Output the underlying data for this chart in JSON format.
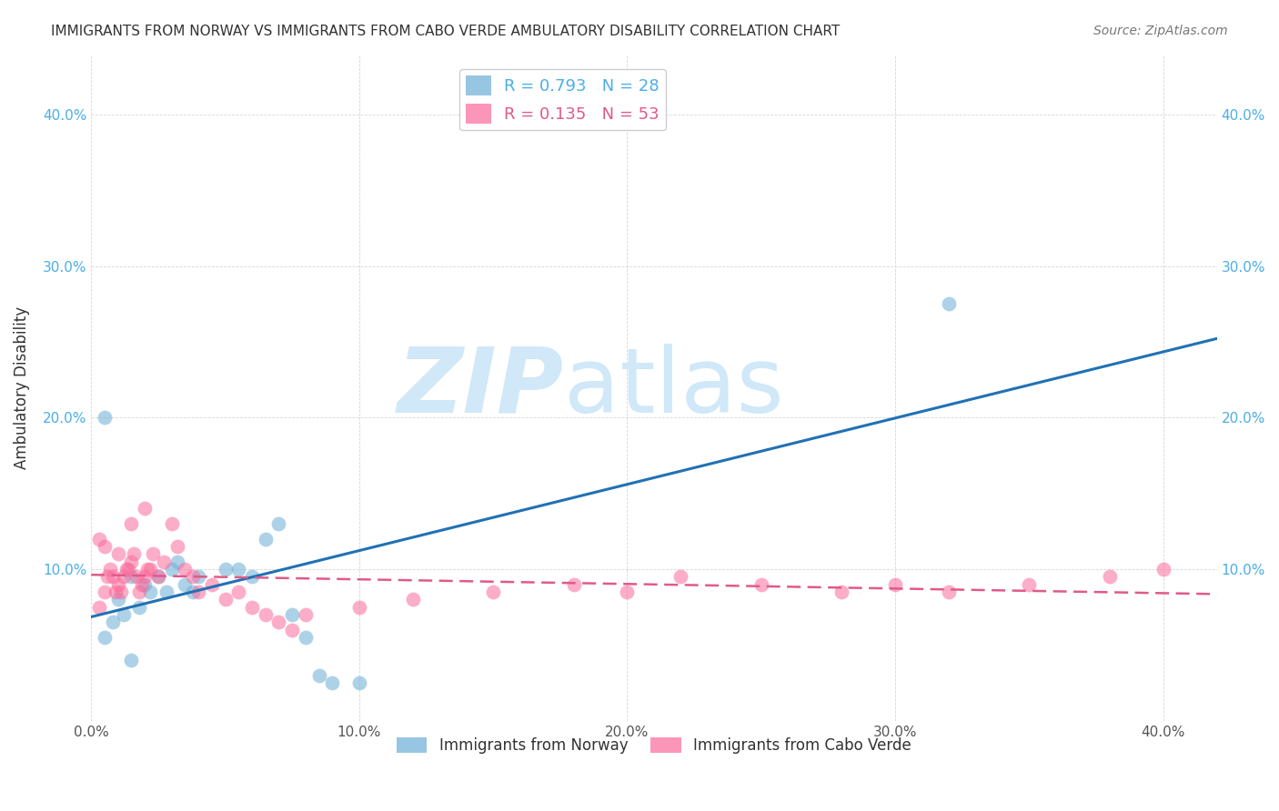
{
  "title": "IMMIGRANTS FROM NORWAY VS IMMIGRANTS FROM CABO VERDE AMBULATORY DISABILITY CORRELATION CHART",
  "source": "Source: ZipAtlas.com",
  "ylabel": "Ambulatory Disability",
  "xlim": [
    0.0,
    0.42
  ],
  "ylim": [
    0.0,
    0.44
  ],
  "xticks": [
    0.0,
    0.1,
    0.2,
    0.3,
    0.4
  ],
  "yticks": [
    0.0,
    0.1,
    0.2,
    0.3,
    0.4
  ],
  "xticklabels": [
    "0.0%",
    "10.0%",
    "20.0%",
    "30.0%",
    "40.0%"
  ],
  "yticklabels": [
    "",
    "10.0%",
    "20.0%",
    "30.0%",
    "40.0%"
  ],
  "norway_color": "#6baed6",
  "cabo_verde_color": "#fb6a9a",
  "norway_R": 0.793,
  "norway_N": 28,
  "cabo_verde_R": 0.135,
  "cabo_verde_N": 53,
  "norway_line_color": "#2171b5",
  "cabo_verde_line_color": "#e05a8a",
  "watermark_zip": "ZIP",
  "watermark_atlas": "atlas",
  "watermark_color": "#d0e8f8",
  "norway_legend_color": "#4baee8",
  "cabo_legend_color": "#e05a8a",
  "norway_scatter_x": [
    0.005,
    0.008,
    0.01,
    0.012,
    0.015,
    0.018,
    0.02,
    0.022,
    0.025,
    0.028,
    0.03,
    0.032,
    0.035,
    0.038,
    0.04,
    0.05,
    0.055,
    0.06,
    0.065,
    0.07,
    0.075,
    0.08,
    0.085,
    0.09,
    0.1,
    0.32,
    0.005,
    0.015
  ],
  "norway_scatter_y": [
    0.055,
    0.065,
    0.08,
    0.07,
    0.095,
    0.075,
    0.09,
    0.085,
    0.095,
    0.085,
    0.1,
    0.105,
    0.09,
    0.085,
    0.095,
    0.1,
    0.1,
    0.095,
    0.12,
    0.13,
    0.07,
    0.055,
    0.03,
    0.025,
    0.025,
    0.275,
    0.2,
    0.04
  ],
  "cabo_verde_scatter_x": [
    0.003,
    0.005,
    0.006,
    0.007,
    0.008,
    0.009,
    0.01,
    0.011,
    0.012,
    0.013,
    0.014,
    0.015,
    0.016,
    0.017,
    0.018,
    0.019,
    0.02,
    0.021,
    0.022,
    0.023,
    0.025,
    0.027,
    0.03,
    0.032,
    0.035,
    0.038,
    0.04,
    0.045,
    0.05,
    0.055,
    0.06,
    0.065,
    0.07,
    0.075,
    0.08,
    0.1,
    0.12,
    0.15,
    0.18,
    0.2,
    0.22,
    0.25,
    0.28,
    0.3,
    0.32,
    0.35,
    0.38,
    0.4,
    0.003,
    0.005,
    0.01,
    0.015,
    0.02
  ],
  "cabo_verde_scatter_y": [
    0.075,
    0.085,
    0.095,
    0.1,
    0.095,
    0.085,
    0.09,
    0.085,
    0.095,
    0.1,
    0.1,
    0.105,
    0.11,
    0.095,
    0.085,
    0.09,
    0.095,
    0.1,
    0.1,
    0.11,
    0.095,
    0.105,
    0.13,
    0.115,
    0.1,
    0.095,
    0.085,
    0.09,
    0.08,
    0.085,
    0.075,
    0.07,
    0.065,
    0.06,
    0.07,
    0.075,
    0.08,
    0.085,
    0.09,
    0.085,
    0.095,
    0.09,
    0.085,
    0.09,
    0.085,
    0.09,
    0.095,
    0.1,
    0.12,
    0.115,
    0.11,
    0.13,
    0.14
  ]
}
